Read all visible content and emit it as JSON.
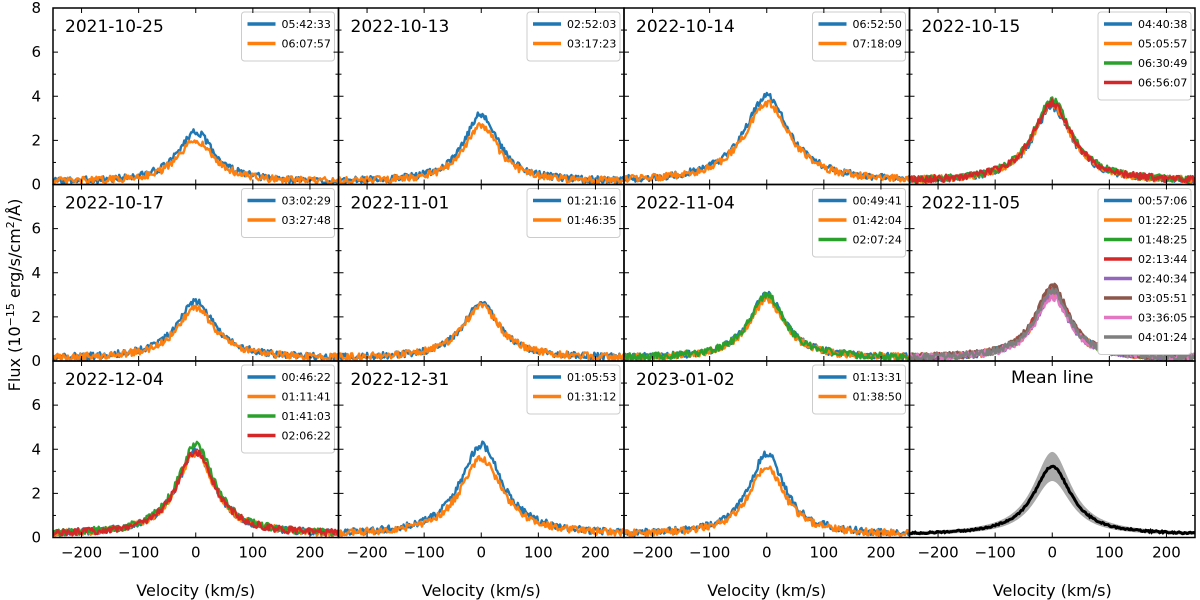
{
  "chart_data": {
    "type": "line",
    "xlabel": "Velocity (km/s)",
    "ylabel": "Flux (10^-15 erg/s/cm^2/Å)",
    "ylabel_parts": {
      "pre": "Flux (10",
      "exp1": "−15",
      "mid": " erg/s/cm",
      "exp2": "2",
      "post": "/Å)"
    },
    "xlim": [
      -250,
      250
    ],
    "ylim": [
      0,
      8
    ],
    "xticks": [
      -200,
      -100,
      0,
      100,
      200
    ],
    "xtick_labels": [
      "−200",
      "−100",
      "0",
      "100",
      "200"
    ],
    "yticks": [
      0,
      2,
      4,
      6,
      8
    ],
    "colors": [
      "#1f77b4",
      "#ff7f0e",
      "#2ca02c",
      "#d62728",
      "#9467bd",
      "#8c564b",
      "#e377c2",
      "#7f7f7f"
    ],
    "panels": [
      {
        "title": "2021-10-25",
        "peak": [
          2.4,
          2.0
        ],
        "width": 38,
        "series": [
          {
            "name": "05:42:33"
          },
          {
            "name": "06:07:57"
          }
        ]
      },
      {
        "title": "2022-10-13",
        "peak": [
          3.2,
          2.7
        ],
        "width": 36,
        "series": [
          {
            "name": "02:52:03"
          },
          {
            "name": "03:17:23"
          }
        ]
      },
      {
        "title": "2022-10-14",
        "peak": [
          4.0,
          3.7
        ],
        "width": 48,
        "series": [
          {
            "name": "06:52:50"
          },
          {
            "name": "07:18:09"
          }
        ]
      },
      {
        "title": "2022-10-15",
        "peak": [
          3.5,
          3.6,
          3.8,
          3.7
        ],
        "width": 42,
        "series": [
          {
            "name": "04:40:38"
          },
          {
            "name": "05:05:57"
          },
          {
            "name": "06:30:49"
          },
          {
            "name": "06:56:07"
          }
        ]
      },
      {
        "title": "2022-10-17",
        "peak": [
          2.7,
          2.4
        ],
        "width": 40,
        "series": [
          {
            "name": "03:02:29"
          },
          {
            "name": "03:27:48"
          }
        ]
      },
      {
        "title": "2022-11-01",
        "peak": [
          2.6,
          2.5
        ],
        "width": 40,
        "series": [
          {
            "name": "01:21:16"
          },
          {
            "name": "01:46:35"
          }
        ]
      },
      {
        "title": "2022-11-04",
        "peak": [
          3.0,
          2.8,
          3.0
        ],
        "width": 38,
        "series": [
          {
            "name": "00:49:41"
          },
          {
            "name": "01:42:04"
          },
          {
            "name": "02:07:24"
          }
        ]
      },
      {
        "title": "2022-11-05",
        "peak": [
          3.1,
          3.0,
          3.2,
          3.3,
          3.0,
          3.4,
          2.9,
          3.2
        ],
        "width": 36,
        "series": [
          {
            "name": "00:57:06"
          },
          {
            "name": "01:22:25"
          },
          {
            "name": "01:48:25"
          },
          {
            "name": "02:13:44"
          },
          {
            "name": "02:40:34"
          },
          {
            "name": "03:05:51"
          },
          {
            "name": "03:36:05"
          },
          {
            "name": "04:01:24"
          }
        ]
      },
      {
        "title": "2022-12-04",
        "peak": [
          3.9,
          3.8,
          4.2,
          3.9
        ],
        "width": 40,
        "series": [
          {
            "name": "00:46:22"
          },
          {
            "name": "01:11:41"
          },
          {
            "name": "01:41:03"
          },
          {
            "name": "02:06:22"
          }
        ]
      },
      {
        "title": "2022-12-31",
        "peak": [
          4.2,
          3.6
        ],
        "width": 44,
        "series": [
          {
            "name": "01:05:53"
          },
          {
            "name": "01:31:12"
          }
        ]
      },
      {
        "title": "2023-01-02",
        "peak": [
          3.8,
          3.2
        ],
        "width": 38,
        "series": [
          {
            "name": "01:13:31"
          },
          {
            "name": "01:38:50"
          }
        ]
      },
      {
        "title": "Mean line",
        "mean": true,
        "peak": [
          3.1
        ],
        "band": 0.6,
        "width": 40,
        "series": []
      }
    ]
  }
}
